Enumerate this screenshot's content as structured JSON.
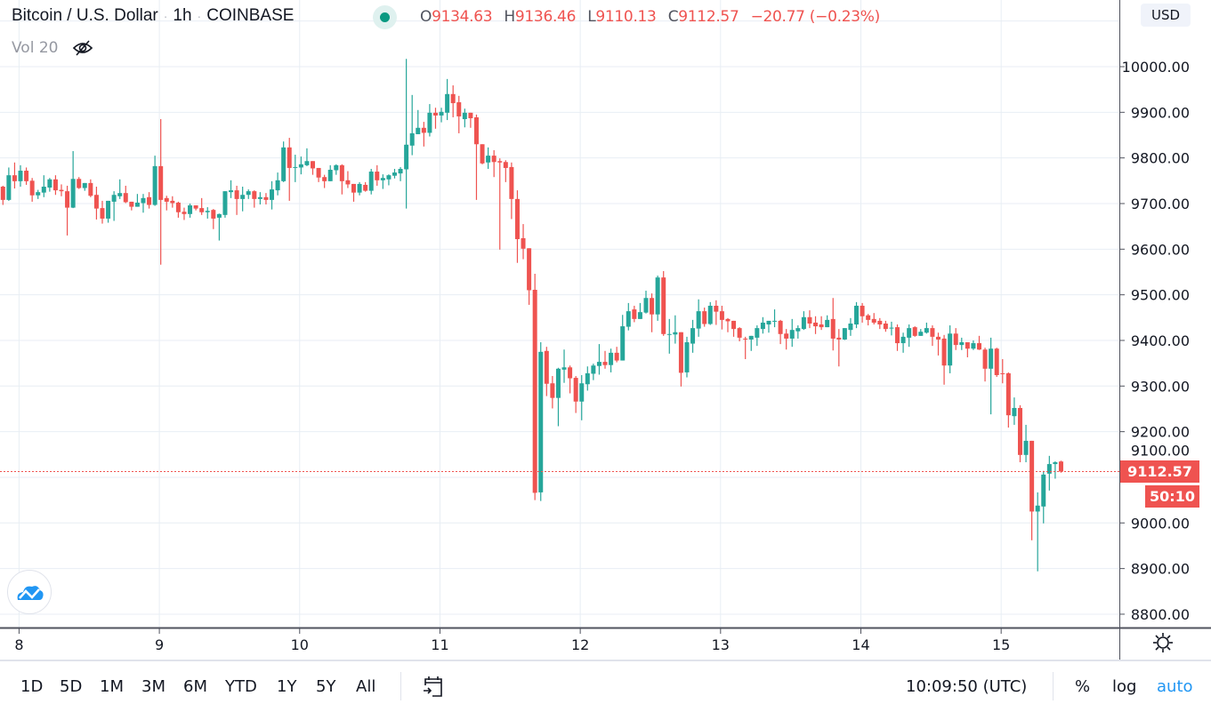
{
  "header": {
    "symbol": "Bitcoin / U.S. Dollar",
    "interval": "1h",
    "exchange": "COINBASE",
    "separator": "·",
    "ohlc": {
      "o_label": "O",
      "o": "9134.63",
      "h_label": "H",
      "h": "9136.46",
      "l_label": "L",
      "l": "9110.13",
      "c_label": "C",
      "c": "9112.57",
      "change": "−20.77 (−0.23%)"
    }
  },
  "indicator": {
    "label": "Vol 20",
    "icon": "eye-crossed-icon"
  },
  "price_axis": {
    "currency": "USD",
    "last_price": "9112.57",
    "countdown": "50:10"
  },
  "toolbar": {
    "ranges": [
      "1D",
      "5D",
      "1M",
      "3M",
      "6M",
      "YTD",
      "1Y",
      "5Y",
      "All"
    ],
    "goto_icon": "calendar-goto-icon",
    "clock": "10:09:50 (UTC)",
    "percent": "%",
    "log": "log",
    "auto": "auto"
  },
  "colors": {
    "up": "#26a69a",
    "down": "#ef5350",
    "grid": "#e8eef4",
    "axis": "#50535e",
    "accent": "#2196f3"
  },
  "chart_data": {
    "type": "candlestick",
    "title": "Bitcoin / U.S. Dollar · 1h · COINBASE",
    "interval": "1h",
    "x_tick_labels": [
      "8",
      "9",
      "10",
      "11",
      "12",
      "13",
      "14",
      "15"
    ],
    "y_tick_labels": [
      "8800.00",
      "8900.00",
      "9000.00",
      "9100.00",
      "9200.00",
      "9300.00",
      "9400.00",
      "9500.00",
      "9600.00",
      "9700.00",
      "9800.00",
      "9900.00",
      "10000.00"
    ],
    "ylim": [
      8770,
      10150
    ],
    "grid": true,
    "last_price": 9112.57,
    "first_candle": "7 21:00",
    "last_candle": "15 10:00",
    "ohlc_fields": [
      "open",
      "high",
      "low",
      "close"
    ],
    "candles": [
      [
        9737,
        9739,
        9697,
        9708
      ],
      [
        9708,
        9779,
        9706,
        9762
      ],
      [
        9762,
        9790,
        9733,
        9749
      ],
      [
        9749,
        9784,
        9737,
        9772
      ],
      [
        9772,
        9779,
        9741,
        9749
      ],
      [
        9750,
        9756,
        9704,
        9718
      ],
      [
        9718,
        9730,
        9710,
        9725
      ],
      [
        9724,
        9762,
        9714,
        9737
      ],
      [
        9735,
        9756,
        9726,
        9753
      ],
      [
        9753,
        9762,
        9719,
        9729
      ],
      [
        9730,
        9742,
        9716,
        9727
      ],
      [
        9727,
        9739,
        9630,
        9691
      ],
      [
        9691,
        9815,
        9690,
        9754
      ],
      [
        9754,
        9758,
        9732,
        9734
      ],
      [
        9734,
        9745,
        9728,
        9745
      ],
      [
        9745,
        9753,
        9714,
        9717
      ],
      [
        9719,
        9737,
        9665,
        9689
      ],
      [
        9690,
        9706,
        9656,
        9667
      ],
      [
        9667,
        9706,
        9658,
        9706
      ],
      [
        9704,
        9727,
        9662,
        9719
      ],
      [
        9716,
        9753,
        9710,
        9723
      ],
      [
        9723,
        9739,
        9701,
        9703
      ],
      [
        9704,
        9704,
        9685,
        9693
      ],
      [
        9693,
        9721,
        9693,
        9702
      ],
      [
        9701,
        9721,
        9680,
        9712
      ],
      [
        9714,
        9725,
        9689,
        9697
      ],
      [
        9697,
        9805,
        9695,
        9782
      ],
      [
        9782,
        9885,
        9566,
        9708
      ],
      [
        9712,
        9717,
        9685,
        9704
      ],
      [
        9706,
        9716,
        9691,
        9701
      ],
      [
        9702,
        9704,
        9669,
        9681
      ],
      [
        9682,
        9691,
        9664,
        9677
      ],
      [
        9677,
        9700,
        9669,
        9696
      ],
      [
        9696,
        9696,
        9685,
        9689
      ],
      [
        9690,
        9712,
        9675,
        9681
      ],
      [
        9681,
        9692,
        9667,
        9684
      ],
      [
        9686,
        9688,
        9644,
        9667
      ],
      [
        9669,
        9678,
        9619,
        9677
      ],
      [
        9675,
        9727,
        9669,
        9727
      ],
      [
        9725,
        9751,
        9712,
        9729
      ],
      [
        9729,
        9739,
        9675,
        9710
      ],
      [
        9710,
        9737,
        9683,
        9719
      ],
      [
        9719,
        9731,
        9710,
        9727
      ],
      [
        9727,
        9729,
        9691,
        9710
      ],
      [
        9710,
        9725,
        9698,
        9714
      ],
      [
        9714,
        9723,
        9698,
        9708
      ],
      [
        9708,
        9749,
        9687,
        9731
      ],
      [
        9729,
        9768,
        9718,
        9751
      ],
      [
        9749,
        9836,
        9747,
        9823
      ],
      [
        9823,
        9844,
        9706,
        9778
      ],
      [
        9779,
        9807,
        9747,
        9780
      ],
      [
        9779,
        9803,
        9764,
        9786
      ],
      [
        9784,
        9821,
        9782,
        9793
      ],
      [
        9793,
        9793,
        9763,
        9777
      ],
      [
        9778,
        9778,
        9747,
        9757
      ],
      [
        9758,
        9763,
        9734,
        9749
      ],
      [
        9749,
        9784,
        9749,
        9774
      ],
      [
        9773,
        9786,
        9763,
        9784
      ],
      [
        9784,
        9786,
        9720,
        9749
      ],
      [
        9751,
        9771,
        9734,
        9742
      ],
      [
        9743,
        9743,
        9704,
        9724
      ],
      [
        9724,
        9747,
        9718,
        9743
      ],
      [
        9741,
        9747,
        9726,
        9728
      ],
      [
        9728,
        9776,
        9720,
        9770
      ],
      [
        9770,
        9784,
        9739,
        9751
      ],
      [
        9751,
        9764,
        9732,
        9756
      ],
      [
        9753,
        9764,
        9740,
        9762
      ],
      [
        9761,
        9776,
        9755,
        9768
      ],
      [
        9766,
        9780,
        9749,
        9776
      ],
      [
        9775,
        10017,
        9689,
        9829
      ],
      [
        9827,
        9938,
        9806,
        9854
      ],
      [
        9852,
        9905,
        9852,
        9866
      ],
      [
        9866,
        9879,
        9825,
        9855
      ],
      [
        9855,
        9918,
        9847,
        9899
      ],
      [
        9899,
        9910,
        9864,
        9893
      ],
      [
        9893,
        9910,
        9878,
        9901
      ],
      [
        9899,
        9973,
        9883,
        9940
      ],
      [
        9940,
        9959,
        9889,
        9920
      ],
      [
        9922,
        9936,
        9854,
        9891
      ],
      [
        9885,
        9908,
        9867,
        9899
      ],
      [
        9899,
        9899,
        9866,
        9887
      ],
      [
        9889,
        9895,
        9708,
        9830
      ],
      [
        9830,
        9830,
        9786,
        9788
      ],
      [
        9790,
        9823,
        9776,
        9805
      ],
      [
        9805,
        9817,
        9758,
        9791
      ],
      [
        9793,
        9799,
        9599,
        9790
      ],
      [
        9791,
        9795,
        9747,
        9778
      ],
      [
        9780,
        9790,
        9666,
        9710
      ],
      [
        9710,
        9729,
        9570,
        9622
      ],
      [
        9624,
        9655,
        9578,
        9601
      ],
      [
        9602,
        9602,
        9478,
        9510
      ],
      [
        9511,
        9546,
        9050,
        9066
      ],
      [
        9067,
        9396,
        9048,
        9375
      ],
      [
        9377,
        9386,
        9278,
        9305
      ],
      [
        9306,
        9322,
        9251,
        9274
      ],
      [
        9274,
        9340,
        9212,
        9338
      ],
      [
        9336,
        9380,
        9307,
        9341
      ],
      [
        9341,
        9345,
        9284,
        9317
      ],
      [
        9318,
        9322,
        9241,
        9266
      ],
      [
        9266,
        9324,
        9225,
        9306
      ],
      [
        9304,
        9343,
        9290,
        9328
      ],
      [
        9327,
        9349,
        9313,
        9345
      ],
      [
        9344,
        9392,
        9325,
        9353
      ],
      [
        9353,
        9377,
        9338,
        9346
      ],
      [
        9346,
        9382,
        9330,
        9373
      ],
      [
        9373,
        9386,
        9352,
        9356
      ],
      [
        9356,
        9456,
        9356,
        9431
      ],
      [
        9430,
        9482,
        9422,
        9464
      ],
      [
        9468,
        9476,
        9440,
        9447
      ],
      [
        9447,
        9482,
        9447,
        9462
      ],
      [
        9461,
        9509,
        9459,
        9493
      ],
      [
        9493,
        9503,
        9418,
        9457
      ],
      [
        9457,
        9542,
        9443,
        9538
      ],
      [
        9538,
        9552,
        9410,
        9414
      ],
      [
        9413,
        9447,
        9371,
        9414
      ],
      [
        9413,
        9455,
        9393,
        9418
      ],
      [
        9418,
        9418,
        9299,
        9329
      ],
      [
        9330,
        9408,
        9319,
        9396
      ],
      [
        9393,
        9445,
        9373,
        9427
      ],
      [
        9426,
        9490,
        9408,
        9464
      ],
      [
        9464,
        9472,
        9430,
        9436
      ],
      [
        9436,
        9484,
        9434,
        9476
      ],
      [
        9476,
        9488,
        9434,
        9463
      ],
      [
        9464,
        9476,
        9424,
        9445
      ],
      [
        9447,
        9449,
        9418,
        9442
      ],
      [
        9443,
        9443,
        9408,
        9425
      ],
      [
        9427,
        9429,
        9398,
        9406
      ],
      [
        9404,
        9408,
        9359,
        9402
      ],
      [
        9402,
        9410,
        9377,
        9410
      ],
      [
        9406,
        9433,
        9388,
        9427
      ],
      [
        9425,
        9451,
        9415,
        9439
      ],
      [
        9435,
        9443,
        9417,
        9443
      ],
      [
        9442,
        9468,
        9429,
        9443
      ],
      [
        9443,
        9445,
        9392,
        9414
      ],
      [
        9415,
        9425,
        9380,
        9404
      ],
      [
        9404,
        9447,
        9386,
        9423
      ],
      [
        9420,
        9433,
        9404,
        9427
      ],
      [
        9425,
        9464,
        9423,
        9451
      ],
      [
        9451,
        9466,
        9427,
        9437
      ],
      [
        9439,
        9453,
        9414,
        9431
      ],
      [
        9435,
        9453,
        9423,
        9429
      ],
      [
        9429,
        9455,
        9429,
        9445
      ],
      [
        9447,
        9493,
        9378,
        9404
      ],
      [
        9406,
        9425,
        9343,
        9402
      ],
      [
        9402,
        9427,
        9401,
        9427
      ],
      [
        9423,
        9449,
        9410,
        9437
      ],
      [
        9435,
        9484,
        9427,
        9476
      ],
      [
        9476,
        9482,
        9439,
        9453
      ],
      [
        9455,
        9458,
        9433,
        9445
      ],
      [
        9447,
        9460,
        9435,
        9439
      ],
      [
        9443,
        9449,
        9425,
        9435
      ],
      [
        9437,
        9443,
        9419,
        9425
      ],
      [
        9427,
        9441,
        9411,
        9428
      ],
      [
        9429,
        9435,
        9377,
        9394
      ],
      [
        9394,
        9417,
        9373,
        9408
      ],
      [
        9406,
        9435,
        9386,
        9427
      ],
      [
        9429,
        9431,
        9408,
        9410
      ],
      [
        9410,
        9425,
        9410,
        9419
      ],
      [
        9417,
        9439,
        9415,
        9427
      ],
      [
        9427,
        9433,
        9388,
        9408
      ],
      [
        9408,
        9417,
        9367,
        9402
      ],
      [
        9404,
        9412,
        9303,
        9345
      ],
      [
        9345,
        9433,
        9328,
        9415
      ],
      [
        9415,
        9427,
        9379,
        9390
      ],
      [
        9390,
        9406,
        9379,
        9396
      ],
      [
        9396,
        9396,
        9363,
        9382
      ],
      [
        9382,
        9400,
        9379,
        9394
      ],
      [
        9394,
        9410,
        9379,
        9380
      ],
      [
        9380,
        9384,
        9310,
        9338
      ],
      [
        9338,
        9406,
        9238,
        9382
      ],
      [
        9382,
        9384,
        9320,
        9324
      ],
      [
        9328,
        9359,
        9306,
        9327
      ],
      [
        9328,
        9330,
        9209,
        9236
      ],
      [
        9234,
        9275,
        9215,
        9252
      ],
      [
        9252,
        9258,
        9133,
        9149
      ],
      [
        9149,
        9215,
        9133,
        9180
      ],
      [
        9180,
        9180,
        8962,
        9025
      ],
      [
        9025,
        9067,
        8894,
        9038
      ],
      [
        9036,
        9114,
        8999,
        9106
      ],
      [
        9108,
        9147,
        9071,
        9129
      ],
      [
        9129,
        9135,
        9097,
        9133
      ],
      [
        9134.63,
        9136.46,
        9110.13,
        9112.57
      ]
    ]
  }
}
